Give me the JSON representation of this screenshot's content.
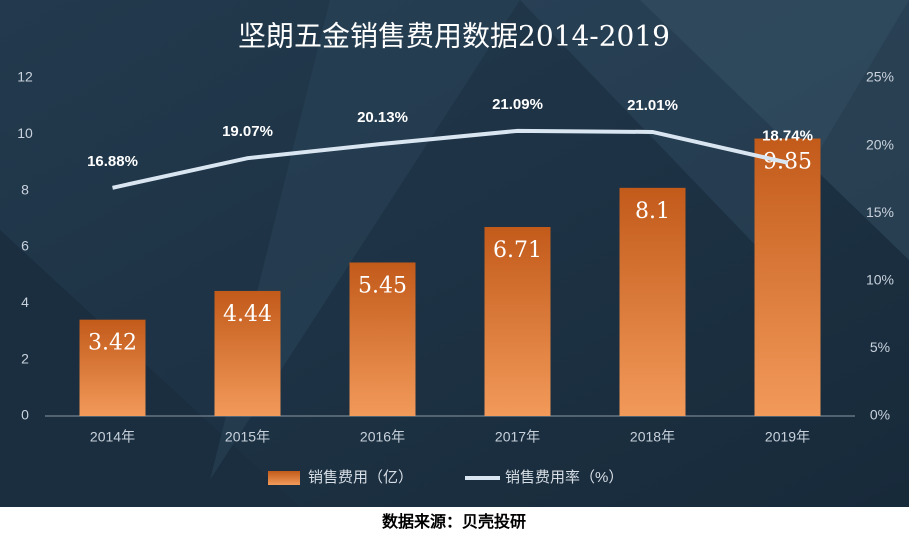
{
  "chart_data": {
    "type": "bar",
    "title": "坚朗五金销售费用数据2014-2019",
    "categories": [
      "2014年",
      "2015年",
      "2016年",
      "2017年",
      "2018年",
      "2019年"
    ],
    "series": [
      {
        "name": "销售费用（亿）",
        "type": "bar",
        "color": "#e8782f",
        "values": [
          3.42,
          4.44,
          5.45,
          6.71,
          8.1,
          9.85
        ]
      },
      {
        "name": "销售费用率（%）",
        "type": "line",
        "axis": "y2",
        "color": "#d9e6f2",
        "values": [
          16.88,
          19.07,
          20.13,
          21.09,
          21.01,
          18.74
        ],
        "value_labels": [
          "16.88%",
          "19.07%",
          "20.13%",
          "21.09%",
          "21.01%",
          "18.74%"
        ]
      }
    ],
    "ylim": [
      0,
      12
    ],
    "yticks": [
      0,
      2,
      4,
      6,
      8,
      10,
      12
    ],
    "y2lim": [
      0,
      25
    ],
    "y2ticks": [
      {
        "value": 0,
        "label": "0%"
      },
      {
        "value": 5,
        "label": "5%"
      },
      {
        "value": 10,
        "label": "10%"
      },
      {
        "value": 15,
        "label": "15%"
      },
      {
        "value": 20,
        "label": "20%"
      },
      {
        "value": 25,
        "label": "25%"
      }
    ],
    "legend": "bottom",
    "source": "数据来源：贝壳投研"
  }
}
